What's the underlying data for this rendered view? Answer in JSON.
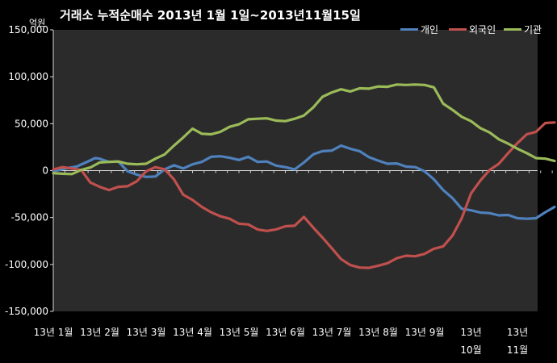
{
  "chart_data": {
    "type": "line",
    "title": "거래소 누적순매수 2013년 1월 1일~2013년11월15일",
    "unit_label": "억원",
    "ylim": [
      -150000,
      150000
    ],
    "yticks": [
      "150,000",
      "100,000",
      "50,000",
      "0",
      "-50,000",
      "-100,000",
      "-150,000"
    ],
    "ytick_values": [
      150000,
      100000,
      50000,
      0,
      -50000,
      -100000,
      -150000
    ],
    "grid": false,
    "legend_position": "top-right",
    "x_ticks": [
      {
        "label": "13년 1월",
        "pos": 0
      },
      {
        "label": "13년 2월",
        "pos": 1
      },
      {
        "label": "13년 3월",
        "pos": 2
      },
      {
        "label": "13년 4월",
        "pos": 3
      },
      {
        "label": "13년 5월",
        "pos": 4
      },
      {
        "label": "13년 6월",
        "pos": 5
      },
      {
        "label": "13년 7월",
        "pos": 6
      },
      {
        "label": "13년 8월",
        "pos": 7
      },
      {
        "label": "13년 9월",
        "pos": 8
      },
      {
        "label": "13년\n10월",
        "pos": 9
      },
      {
        "label": "13년\n11월",
        "pos": 10
      }
    ],
    "xlim": [
      0,
      10.8
    ],
    "series": [
      {
        "name": "개인",
        "color": "#4f81bd",
        "x": [
          0,
          0.3,
          0.5,
          0.7,
          0.9,
          1.0,
          1.2,
          1.4,
          1.6,
          1.8,
          2.0,
          2.2,
          2.4,
          2.6,
          2.8,
          3.0,
          3.2,
          3.4,
          3.6,
          3.8,
          4.0,
          4.2,
          4.4,
          4.6,
          4.8,
          5.0,
          5.2,
          5.4,
          5.6,
          5.8,
          6.0,
          6.2,
          6.4,
          6.6,
          6.8,
          7.0,
          7.2,
          7.4,
          7.6,
          7.8,
          8.0,
          8.2,
          8.4,
          8.6,
          8.8,
          9.0,
          9.2,
          9.4,
          9.6,
          9.8,
          10.0,
          10.2,
          10.4,
          10.6,
          10.8
        ],
        "y": [
          0,
          2000,
          5000,
          8000,
          14000,
          12000,
          10000,
          9000,
          0,
          -5000,
          -6000,
          -7000,
          2000,
          5000,
          3000,
          6000,
          10000,
          14000,
          16000,
          13000,
          12000,
          14000,
          10000,
          9000,
          6000,
          3000,
          2000,
          8000,
          18000,
          20000,
          22000,
          26000,
          24000,
          20000,
          15000,
          10000,
          8000,
          7000,
          5000,
          3000,
          0,
          -10000,
          -20000,
          -30000,
          -40000,
          -43000,
          -44000,
          -46000,
          -47000,
          -48000,
          -50000,
          -52000,
          -50000,
          -45000,
          -38000
        ]
      },
      {
        "name": "외국인",
        "color": "#c0504d",
        "x": [
          0,
          0.2,
          0.4,
          0.6,
          0.8,
          1.0,
          1.2,
          1.4,
          1.6,
          1.8,
          2.0,
          2.2,
          2.4,
          2.6,
          2.8,
          3.0,
          3.2,
          3.4,
          3.6,
          3.8,
          4.0,
          4.2,
          4.4,
          4.6,
          4.8,
          5.0,
          5.2,
          5.4,
          5.6,
          5.8,
          6.0,
          6.2,
          6.4,
          6.6,
          6.8,
          7.0,
          7.2,
          7.4,
          7.6,
          7.8,
          8.0,
          8.2,
          8.4,
          8.6,
          8.8,
          9.0,
          9.2,
          9.4,
          9.6,
          9.8,
          10.0,
          10.2,
          10.4,
          10.6,
          10.8
        ],
        "y": [
          2000,
          3000,
          3000,
          0,
          -12000,
          -18000,
          -20000,
          -18000,
          -16000,
          -12000,
          0,
          3000,
          2000,
          -10000,
          -25000,
          -32000,
          -38000,
          -45000,
          -48000,
          -52000,
          -56000,
          -58000,
          -62000,
          -65000,
          -62000,
          -60000,
          -58000,
          -50000,
          -60000,
          -72000,
          -82000,
          -95000,
          -100000,
          -104000,
          -103000,
          -102000,
          -98000,
          -94000,
          -90000,
          -92000,
          -88000,
          -84000,
          -80000,
          -70000,
          -50000,
          -25000,
          -10000,
          0,
          8000,
          18000,
          30000,
          38000,
          42000,
          50000,
          52000
        ]
      },
      {
        "name": "기관",
        "color": "#9bbb59",
        "x": [
          0,
          0.2,
          0.4,
          0.6,
          0.8,
          1.0,
          1.2,
          1.4,
          1.6,
          1.8,
          2.0,
          2.2,
          2.4,
          2.6,
          2.8,
          3.0,
          3.2,
          3.4,
          3.6,
          3.8,
          4.0,
          4.2,
          4.4,
          4.6,
          4.8,
          5.0,
          5.2,
          5.4,
          5.6,
          5.8,
          6.0,
          6.2,
          6.4,
          6.6,
          6.8,
          7.0,
          7.2,
          7.4,
          7.6,
          7.8,
          8.0,
          8.2,
          8.4,
          8.6,
          8.8,
          9.0,
          9.2,
          9.4,
          9.6,
          9.8,
          10.0,
          10.2,
          10.4,
          10.6,
          10.8
        ],
        "y": [
          -2000,
          -4000,
          -3000,
          0,
          4000,
          8000,
          10000,
          9000,
          8000,
          6000,
          8000,
          12000,
          18000,
          26000,
          36000,
          44000,
          40000,
          38000,
          42000,
          46000,
          50000,
          54000,
          56000,
          55000,
          54000,
          52000,
          56000,
          58000,
          68000,
          78000,
          84000,
          86000,
          85000,
          87000,
          88000,
          89000,
          90000,
          91000,
          92000,
          91000,
          92000,
          88000,
          72000,
          64000,
          58000,
          52000,
          46000,
          40000,
          34000,
          28000,
          24000,
          18000,
          14000,
          12000,
          11000
        ]
      }
    ]
  }
}
